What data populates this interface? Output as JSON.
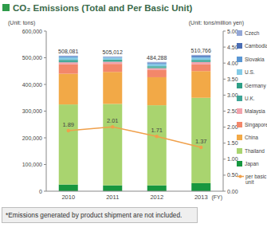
{
  "chart_data": {
    "type": "bar",
    "title": "CO₂ Emissions (Total and Per Basic Unit)",
    "ylabel": "(Unit: tons)",
    "y2label": "(Unit: tons/million yen)",
    "xlabel": "(FY)",
    "note": "*Emissions generated by product shipment are not included.",
    "categories": [
      "2010",
      "2011",
      "2012",
      "2013"
    ],
    "stacked": true,
    "grid": false,
    "legend": "right",
    "ylim": [
      0,
      600000
    ],
    "yticks": [
      0,
      {
        "value": 100000,
        "label": "100,000"
      },
      {
        "value": 200000,
        "label": "200,000"
      },
      {
        "value": 300000,
        "label": "300,000"
      },
      {
        "value": 400000,
        "label": "400,000"
      },
      {
        "value": 500000,
        "label": "500,000"
      },
      {
        "value": 600000,
        "label": "600,000"
      }
    ],
    "y2lim": [
      0,
      5
    ],
    "y2ticks": [
      {
        "value": 0,
        "label": "0.00"
      },
      {
        "value": 0.5,
        "label": "0.50"
      },
      {
        "value": 1,
        "label": "1.00"
      },
      {
        "value": 1.5,
        "label": "1.50"
      },
      {
        "value": 2,
        "label": "2.00"
      },
      {
        "value": 2.5,
        "label": "2.50"
      },
      {
        "value": 3,
        "label": "3.00"
      },
      {
        "value": 3.5,
        "label": "3.50"
      },
      {
        "value": 4,
        "label": "4.00"
      },
      {
        "value": 4.5,
        "label": "4.50"
      },
      {
        "value": 5,
        "label": "5.00"
      }
    ],
    "totals": [
      508081,
      505012,
      484288,
      510766
    ],
    "total_labels": [
      "508,081",
      "505,012",
      "484,288",
      "510,766"
    ],
    "series": [
      {
        "name": "Japan",
        "color": "#17973f",
        "values": [
          25000,
          22000,
          22000,
          30000
        ]
      },
      {
        "name": "Thailand",
        "color": "#a9d46f",
        "values": [
          300000,
          305000,
          300000,
          320000
        ]
      },
      {
        "name": "China",
        "color": "#f2a947",
        "values": [
          115000,
          120000,
          105000,
          100000
        ]
      },
      {
        "name": "Singapore",
        "color": "#f3876a",
        "values": [
          35000,
          30000,
          27000,
          25000
        ]
      },
      {
        "name": "Malaysia",
        "color": "#f2a3ad",
        "values": [
          8000,
          8000,
          7000,
          9000
        ]
      },
      {
        "name": "U.K.",
        "color": "#3fa597",
        "values": [
          6000,
          5000,
          4000,
          5000
        ]
      },
      {
        "name": "Germany",
        "color": "#2f9f86",
        "values": [
          3000,
          3000,
          3000,
          3000
        ]
      },
      {
        "name": "U.S.",
        "color": "#84cbe6",
        "values": [
          9000,
          7000,
          8000,
          8000
        ]
      },
      {
        "name": "Slovakia",
        "color": "#5a96d3",
        "values": [
          4000,
          3000,
          4000,
          5000
        ]
      },
      {
        "name": "Cambodia",
        "color": "#4a6db3",
        "values": [
          0,
          0,
          2000,
          3000
        ]
      },
      {
        "name": "Czech",
        "color": "#93a6d6",
        "values": [
          3081,
          2012,
          2288,
          2766
        ]
      },
      {
        "name": "per basic unit",
        "color": "#f0a04b",
        "type": "line",
        "axis": "y2",
        "marker": "circle",
        "data_labels": true,
        "values": [
          1.89,
          2.01,
          1.71,
          1.37
        ]
      }
    ]
  }
}
